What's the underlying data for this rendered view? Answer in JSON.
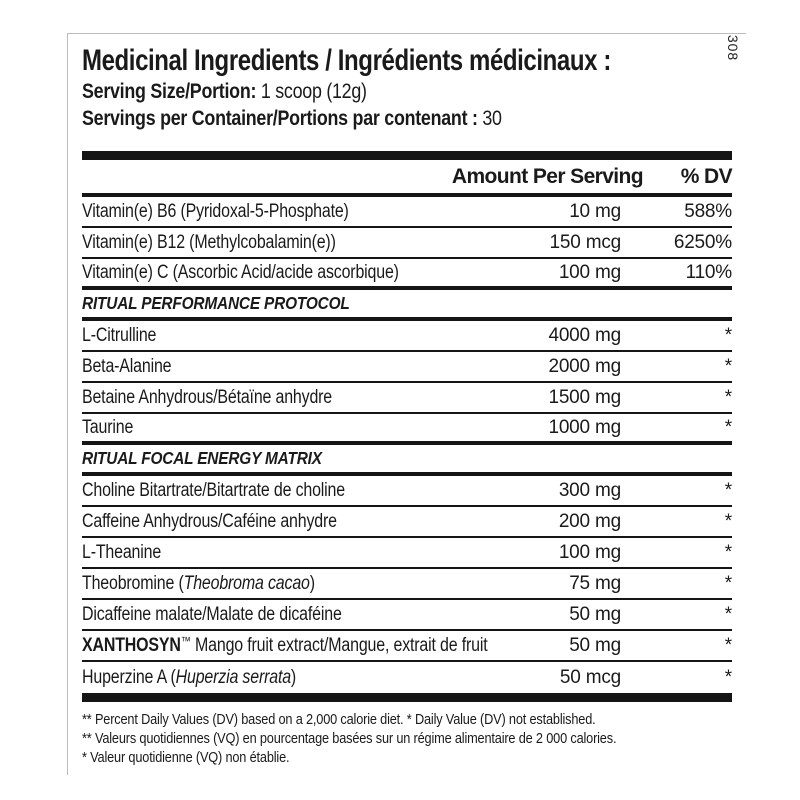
{
  "page": {
    "vertical_code": "308"
  },
  "colors": {
    "ink": "#1a1a1a",
    "rule": "#151515",
    "panel_border": "#bcbcbc"
  },
  "header": {
    "title": "Medicinal Ingredients / Ingrédients médicinaux :",
    "serving_size_label": "Serving Size/Portion:",
    "serving_size_value": "1 scoop (12g)",
    "servings_label": "Servings per Container/Portions par contenant :",
    "servings_value": "30"
  },
  "table": {
    "columns": {
      "amount": "Amount Per Serving",
      "dv": "% DV"
    },
    "rows": [
      {
        "type": "item",
        "parts": [
          {
            "t": "Vitamin(e) B6 (Pyridoxal-5-Phosphate)"
          }
        ],
        "amount": "10 mg",
        "dv": "588%",
        "sep": "thin"
      },
      {
        "type": "item",
        "parts": [
          {
            "t": "Vitamin(e) B12 (Methylcobalamin(e))"
          }
        ],
        "amount": "150 mcg",
        "dv": "6250%",
        "sep": "thin"
      },
      {
        "type": "item",
        "parts": [
          {
            "t": "Vitamin(e) C (Ascorbic Acid/acide ascorbique)"
          }
        ],
        "amount": "100 mg",
        "dv": "110%",
        "sep": "medium"
      },
      {
        "type": "section",
        "label": "RITUAL PERFORMANCE PROTOCOL",
        "sep": "medium"
      },
      {
        "type": "item",
        "parts": [
          {
            "t": "L-Citrulline"
          }
        ],
        "amount": "4000 mg",
        "dv": "*",
        "sep": "thin"
      },
      {
        "type": "item",
        "parts": [
          {
            "t": "Beta-Alanine"
          }
        ],
        "amount": "2000 mg",
        "dv": "*",
        "sep": "thin"
      },
      {
        "type": "item",
        "parts": [
          {
            "t": "Betaine Anhydrous/Bétaïne anhydre"
          }
        ],
        "amount": "1500 mg",
        "dv": "*",
        "sep": "thin"
      },
      {
        "type": "item",
        "parts": [
          {
            "t": "Taurine"
          }
        ],
        "amount": "1000 mg",
        "dv": "*",
        "sep": "medium"
      },
      {
        "type": "section",
        "label": "RITUAL FOCAL ENERGY MATRIX",
        "sep": "medium"
      },
      {
        "type": "item",
        "parts": [
          {
            "t": "Choline Bitartrate/Bitartrate de choline"
          }
        ],
        "amount": "300 mg",
        "dv": "*",
        "sep": "thin"
      },
      {
        "type": "item",
        "parts": [
          {
            "t": "Caffeine Anhydrous/Caféine anhydre"
          }
        ],
        "amount": "200 mg",
        "dv": "*",
        "sep": "thin"
      },
      {
        "type": "item",
        "parts": [
          {
            "t": "L-Theanine"
          }
        ],
        "amount": "100 mg",
        "dv": "*",
        "sep": "thin"
      },
      {
        "type": "item",
        "parts": [
          {
            "t": "Theobromine ("
          },
          {
            "t": "Theobroma cacao",
            "s": "i"
          },
          {
            "t": ")"
          }
        ],
        "amount": "75 mg",
        "dv": "*",
        "sep": "thin"
      },
      {
        "type": "item",
        "parts": [
          {
            "t": "Dicaffeine malate/Malate de dicaféine"
          }
        ],
        "amount": "50 mg",
        "dv": "*",
        "sep": "thin"
      },
      {
        "type": "item",
        "parts": [
          {
            "t": "XANTHOSYN",
            "s": "b"
          },
          {
            "t": "™",
            "s": "tm"
          },
          {
            "t": " Mango fruit extract/Mangue, extrait de fruit"
          }
        ],
        "amount": "50 mg",
        "dv": "*",
        "sep": "thin"
      },
      {
        "type": "item",
        "parts": [
          {
            "t": "Huperzine A ("
          },
          {
            "t": "Huperzia serrata",
            "s": "i"
          },
          {
            "t": ")"
          }
        ],
        "amount": "50 mcg",
        "dv": "*",
        "sep": "none"
      }
    ]
  },
  "footnotes": [
    "** Percent Daily Values (DV) based on a 2,000 calorie diet. * Daily Value (DV) not established.",
    "** Valeurs quotidiennes (VQ) en pourcentage basées sur un régime alimentaire de 2 000 calories.",
    "* Valeur quotidienne (VQ) non établie."
  ]
}
